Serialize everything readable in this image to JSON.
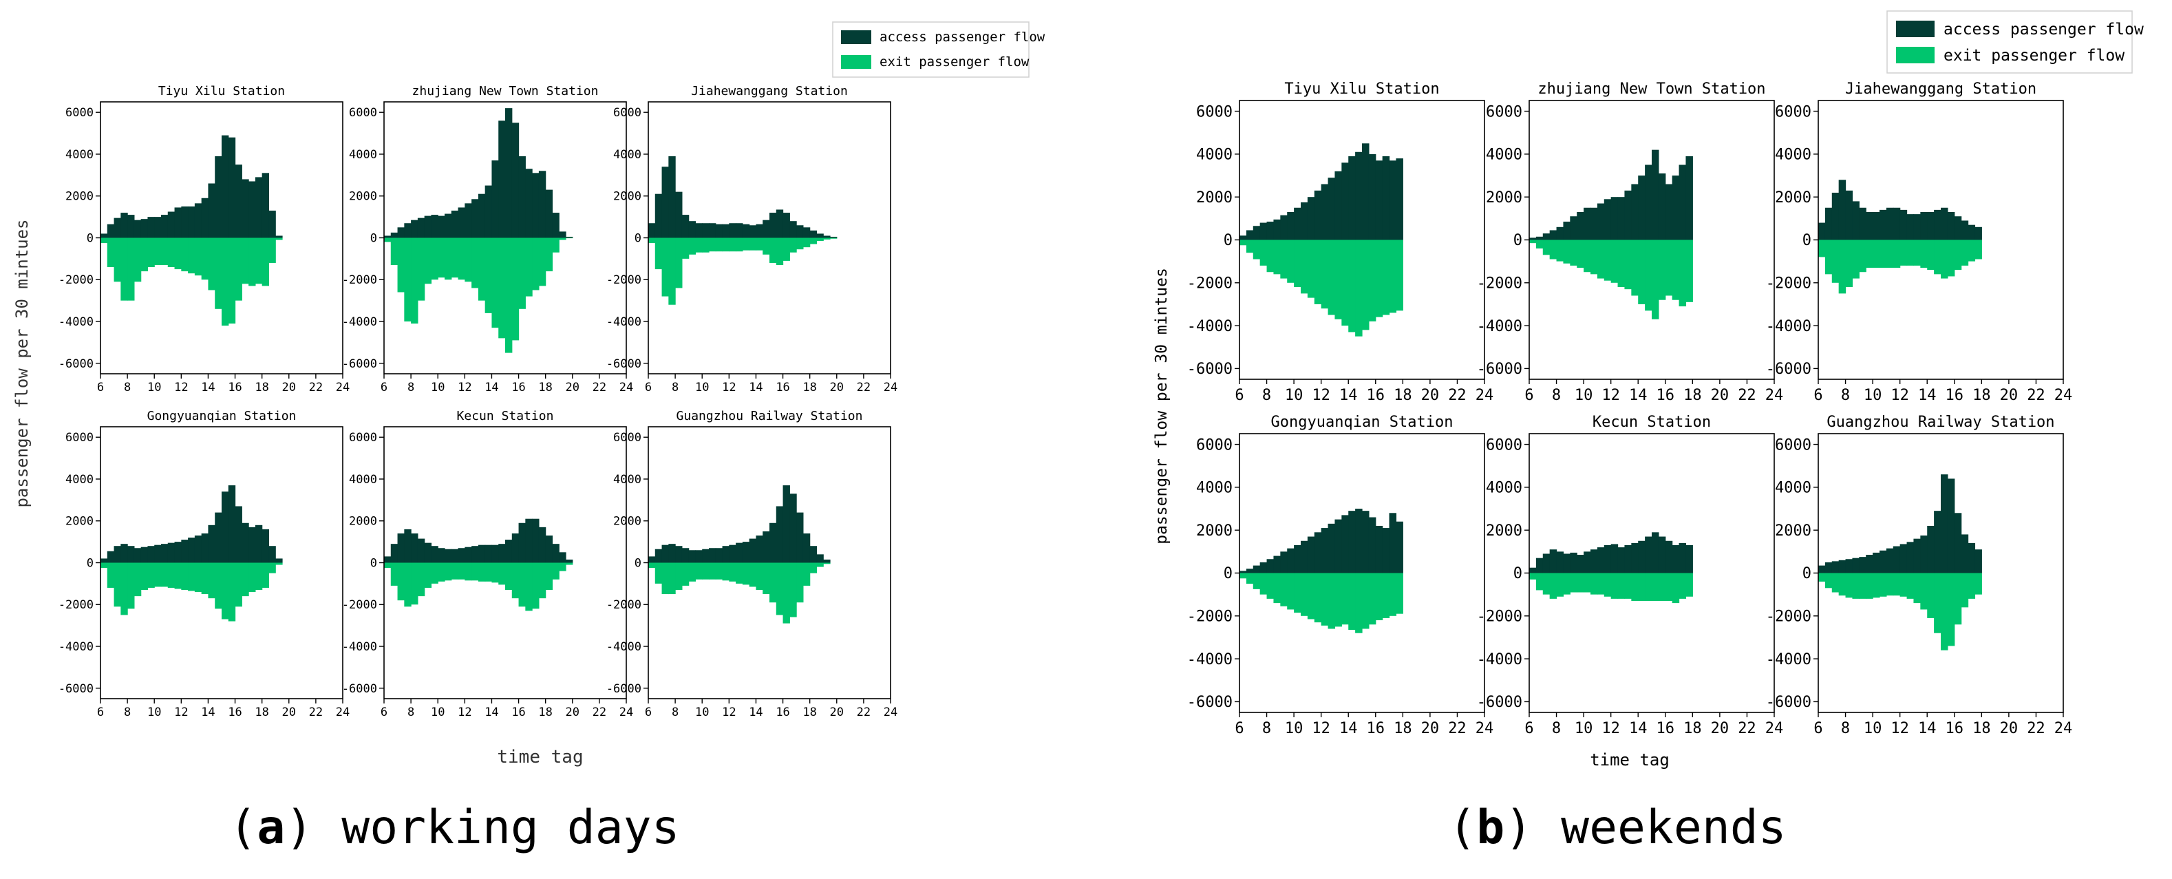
{
  "colors": {
    "access": "#033d35",
    "exit": "#00c56e",
    "axis": "#000000"
  },
  "legend": {
    "access_label": "access passenger flow",
    "exit_label": "exit passenger flow"
  },
  "chart_data": [
    {
      "panel": "a",
      "caption_letter": "a",
      "caption_text": ") working days",
      "type": "bar",
      "xlabel": "time tag",
      "ylabel": "passenger flow per 30 mintues",
      "xlim": [
        6,
        24
      ],
      "ylim": [
        -6500,
        6500
      ],
      "xticks": [
        6,
        8,
        10,
        12,
        14,
        16,
        18,
        20,
        22,
        24
      ],
      "yticks": [
        -6000,
        -4000,
        -2000,
        0,
        2000,
        4000,
        6000
      ],
      "subplots": [
        {
          "title": "Tiyu Xilu Station",
          "x_start": 6,
          "step": 0.5,
          "access": [
            200,
            650,
            950,
            1200,
            1100,
            850,
            900,
            1000,
            1000,
            1100,
            1250,
            1450,
            1500,
            1500,
            1650,
            1900,
            2600,
            3900,
            4900,
            4800,
            3500,
            2800,
            2700,
            2900,
            3100,
            1300,
            100
          ],
          "exit": [
            -250,
            -1400,
            -2100,
            -3000,
            -3000,
            -2100,
            -1600,
            -1400,
            -1300,
            -1300,
            -1400,
            -1500,
            -1600,
            -1700,
            -1800,
            -2000,
            -2500,
            -3400,
            -4200,
            -4100,
            -3000,
            -2200,
            -2300,
            -2200,
            -2300,
            -1200,
            -100
          ]
        },
        {
          "title": "zhujiang New Town Station",
          "x_start": 6,
          "step": 0.5,
          "access": [
            100,
            250,
            500,
            700,
            850,
            950,
            1050,
            1100,
            1050,
            1150,
            1300,
            1450,
            1650,
            1850,
            2100,
            2500,
            3700,
            5600,
            6200,
            5500,
            3900,
            3300,
            3100,
            3200,
            2300,
            1200,
            300,
            50
          ],
          "exit": [
            -200,
            -1300,
            -2600,
            -4000,
            -4100,
            -3000,
            -2200,
            -2000,
            -1900,
            -2000,
            -1900,
            -2000,
            -2100,
            -2400,
            -3000,
            -3600,
            -4300,
            -4800,
            -5500,
            -4900,
            -3400,
            -2800,
            -2500,
            -2300,
            -1600,
            -700,
            -100,
            -20
          ]
        },
        {
          "title": "Jiahewanggang Station",
          "x_start": 6,
          "step": 0.5,
          "access": [
            700,
            2100,
            3400,
            3900,
            2200,
            1100,
            800,
            700,
            700,
            700,
            650,
            650,
            700,
            700,
            650,
            600,
            650,
            850,
            1200,
            1350,
            1200,
            800,
            600,
            500,
            350,
            200,
            100,
            50
          ],
          "exit": [
            -250,
            -1500,
            -2800,
            -3200,
            -2400,
            -1000,
            -800,
            -700,
            -700,
            -650,
            -650,
            -650,
            -650,
            -650,
            -600,
            -600,
            -600,
            -800,
            -1200,
            -1300,
            -1100,
            -700,
            -550,
            -450,
            -300,
            -150,
            -80,
            -40
          ]
        },
        {
          "title": "Gongyuanqian Station",
          "x_start": 6,
          "step": 0.5,
          "access": [
            200,
            550,
            800,
            900,
            800,
            700,
            750,
            800,
            850,
            900,
            950,
            1000,
            1100,
            1200,
            1300,
            1400,
            1800,
            2400,
            3400,
            3700,
            2700,
            1900,
            1700,
            1800,
            1600,
            800,
            200
          ],
          "exit": [
            -250,
            -1200,
            -2100,
            -2500,
            -2200,
            -1600,
            -1300,
            -1200,
            -1150,
            -1150,
            -1200,
            -1250,
            -1300,
            -1350,
            -1400,
            -1500,
            -1700,
            -2200,
            -2700,
            -2800,
            -2100,
            -1600,
            -1400,
            -1300,
            -1200,
            -500,
            -100
          ]
        },
        {
          "title": "Kecun Station",
          "x_start": 6,
          "step": 0.5,
          "access": [
            300,
            900,
            1400,
            1600,
            1400,
            1150,
            950,
            800,
            700,
            650,
            650,
            700,
            750,
            800,
            850,
            850,
            850,
            900,
            1100,
            1400,
            1900,
            2100,
            2100,
            1700,
            1300,
            900,
            500,
            150
          ],
          "exit": [
            -250,
            -1100,
            -1800,
            -2100,
            -2000,
            -1600,
            -1200,
            -1000,
            -900,
            -850,
            -800,
            -800,
            -850,
            -850,
            -900,
            -900,
            -950,
            -1050,
            -1300,
            -1700,
            -2100,
            -2300,
            -2200,
            -1700,
            -1300,
            -800,
            -400,
            -100
          ]
        },
        {
          "title": "Guangzhou Railway Station",
          "x_start": 6,
          "step": 0.5,
          "access": [
            300,
            650,
            850,
            900,
            800,
            700,
            600,
            600,
            650,
            700,
            700,
            800,
            850,
            950,
            1000,
            1150,
            1300,
            1500,
            1900,
            2700,
            3700,
            3300,
            2400,
            1400,
            800,
            400,
            150
          ],
          "exit": [
            -250,
            -1000,
            -1500,
            -1500,
            -1300,
            -1100,
            -900,
            -800,
            -800,
            -800,
            -800,
            -850,
            -900,
            -1000,
            -1050,
            -1150,
            -1300,
            -1500,
            -1900,
            -2500,
            -2900,
            -2600,
            -1900,
            -1100,
            -500,
            -200,
            -60
          ]
        }
      ]
    },
    {
      "panel": "b",
      "caption_letter": "b",
      "caption_text": ") weekends",
      "type": "bar",
      "xlabel": "time tag",
      "ylabel": "passenger flow per 30 mintues",
      "xlim": [
        6,
        24
      ],
      "ylim": [
        -6500,
        6500
      ],
      "xticks": [
        6,
        8,
        10,
        12,
        14,
        16,
        18,
        20,
        22,
        24
      ],
      "yticks": [
        -6000,
        -4000,
        -2000,
        0,
        2000,
        4000,
        6000
      ],
      "subplots": [
        {
          "title": "Tiyu Xilu Station",
          "x_start": 6,
          "step": 0.5,
          "access": [
            200,
            450,
            650,
            800,
            850,
            950,
            1150,
            1300,
            1500,
            1750,
            2000,
            2300,
            2600,
            2900,
            3200,
            3600,
            3900,
            4100,
            4500,
            4000,
            3700,
            3900,
            3700,
            3800
          ],
          "exit": [
            -250,
            -600,
            -900,
            -1200,
            -1500,
            -1600,
            -1800,
            -2000,
            -2200,
            -2500,
            -2700,
            -3000,
            -3200,
            -3500,
            -3700,
            -4000,
            -4300,
            -4500,
            -4200,
            -3800,
            -3600,
            -3500,
            -3400,
            -3300
          ]
        },
        {
          "title": "zhujiang New Town Station",
          "x_start": 6,
          "step": 0.5,
          "access": [
            100,
            150,
            300,
            450,
            600,
            850,
            1100,
            1300,
            1500,
            1500,
            1700,
            1900,
            2000,
            2000,
            2300,
            2600,
            3000,
            3500,
            4200,
            3100,
            2600,
            3000,
            3500,
            3900
          ],
          "exit": [
            -150,
            -400,
            -700,
            -900,
            -1000,
            -1100,
            -1200,
            -1300,
            -1500,
            -1600,
            -1800,
            -1900,
            -2000,
            -2200,
            -2300,
            -2600,
            -3000,
            -3300,
            -3700,
            -2800,
            -2600,
            -2800,
            -3100,
            -2900
          ]
        },
        {
          "title": "Jiahewanggang Station",
          "x_start": 6,
          "step": 0.5,
          "access": [
            800,
            1500,
            2200,
            2800,
            2300,
            1800,
            1500,
            1300,
            1300,
            1400,
            1500,
            1500,
            1400,
            1200,
            1200,
            1300,
            1300,
            1400,
            1500,
            1300,
            1100,
            900,
            700,
            600
          ],
          "exit": [
            -800,
            -1600,
            -2000,
            -2500,
            -2200,
            -1800,
            -1500,
            -1300,
            -1300,
            -1300,
            -1300,
            -1300,
            -1200,
            -1200,
            -1200,
            -1300,
            -1400,
            -1600,
            -1800,
            -1700,
            -1400,
            -1200,
            -1000,
            -900
          ]
        },
        {
          "title": "Gongyuanqian Station",
          "x_start": 6,
          "step": 0.5,
          "access": [
            100,
            200,
            350,
            500,
            650,
            800,
            1000,
            1150,
            1300,
            1500,
            1700,
            1900,
            2100,
            2300,
            2500,
            2700,
            2900,
            3000,
            2900,
            2600,
            2200,
            2100,
            2800,
            2400
          ],
          "exit": [
            -250,
            -500,
            -750,
            -1000,
            -1200,
            -1400,
            -1550,
            -1700,
            -1850,
            -2000,
            -2150,
            -2300,
            -2450,
            -2600,
            -2500,
            -2400,
            -2650,
            -2800,
            -2600,
            -2400,
            -2200,
            -2100,
            -2000,
            -1900
          ]
        },
        {
          "title": "Kecun Station",
          "x_start": 6,
          "step": 0.5,
          "access": [
            250,
            700,
            900,
            1100,
            1000,
            900,
            950,
            850,
            1000,
            1100,
            1200,
            1300,
            1350,
            1200,
            1300,
            1400,
            1500,
            1700,
            1900,
            1700,
            1500,
            1300,
            1400,
            1300
          ],
          "exit": [
            -300,
            -800,
            -1000,
            -1200,
            -1100,
            -1000,
            -900,
            -900,
            -900,
            -1000,
            -1000,
            -1100,
            -1200,
            -1200,
            -1200,
            -1300,
            -1300,
            -1300,
            -1300,
            -1300,
            -1300,
            -1400,
            -1200,
            -1100
          ]
        },
        {
          "title": "Guangzhou Railway Station",
          "x_start": 6,
          "step": 0.5,
          "access": [
            350,
            500,
            550,
            600,
            650,
            700,
            750,
            850,
            950,
            1050,
            1150,
            1250,
            1350,
            1450,
            1600,
            1750,
            2200,
            2900,
            4600,
            4400,
            2800,
            1800,
            1400,
            1100
          ],
          "exit": [
            -400,
            -700,
            -900,
            -1050,
            -1150,
            -1200,
            -1200,
            -1200,
            -1150,
            -1100,
            -1050,
            -1050,
            -1100,
            -1200,
            -1400,
            -1700,
            -2100,
            -2800,
            -3600,
            -3400,
            -2400,
            -1600,
            -1200,
            -1000
          ]
        }
      ]
    }
  ]
}
